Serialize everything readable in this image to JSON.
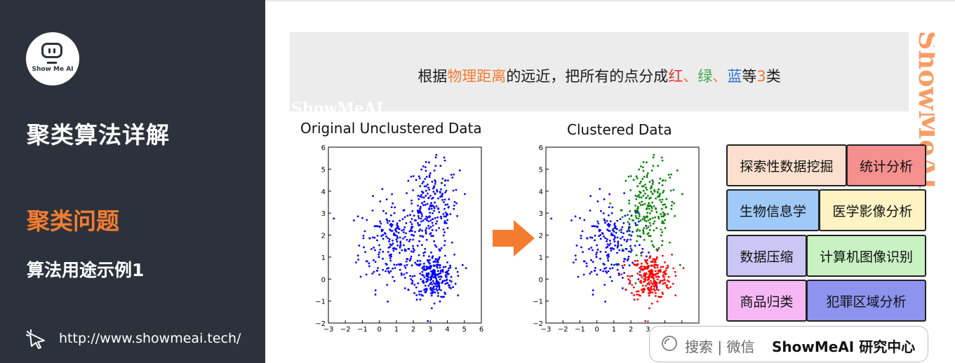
{
  "sidebar": {
    "logo_text": "Show Me AI",
    "title": "聚类算法详解",
    "section": "聚类问题",
    "subsection": "算法用途示例1",
    "link": "http://www.showmeai.tech/"
  },
  "caption": {
    "pre": "根据",
    "hl1": "物理距离",
    "mid": "的远近，把所有的点分成",
    "red": "红",
    "sep1": "、",
    "green": "绿",
    "sep2": "、",
    "blue": "蓝",
    "post1": "等",
    "num": "3",
    "post2": "类"
  },
  "watermark": "ShowMeAI",
  "charts": {
    "left_title": "Original Unclustered Data",
    "right_title": "Clustered Data"
  },
  "chart_data": [
    {
      "type": "scatter",
      "title": "Original Unclustered Data",
      "xlim": [
        -3,
        6
      ],
      "ylim": [
        -2,
        6
      ],
      "xticks": [
        "−3",
        "−2",
        "−1",
        "0",
        "1",
        "2",
        "3",
        "4",
        "5",
        "6"
      ],
      "yticks": [
        "6",
        "5",
        "4",
        "3",
        "2",
        "1",
        "0",
        "−1",
        "−2"
      ],
      "series": [
        {
          "color": "#0000ff",
          "clusters": [
            {
              "cx": 0.8,
              "cy": 1.6,
              "sx": 1.0,
              "sy": 1.0,
              "n": 230
            },
            {
              "cx": 3.1,
              "cy": 3.2,
              "sx": 0.8,
              "sy": 1.0,
              "n": 230
            },
            {
              "cx": 3.2,
              "cy": 0.1,
              "sx": 0.6,
              "sy": 0.5,
              "n": 260
            }
          ]
        }
      ]
    },
    {
      "type": "scatter",
      "title": "Clustered Data",
      "xlim": [
        -3,
        6
      ],
      "ylim": [
        -2,
        6
      ],
      "xticks": [
        "−3",
        "−2",
        "−1",
        "0",
        "1",
        "2",
        "3",
        "4",
        "5",
        "6"
      ],
      "yticks": [
        "6",
        "5",
        "4",
        "3",
        "2",
        "1",
        "0",
        "−1",
        "−2"
      ],
      "series": [
        {
          "color": "#0000ff",
          "clusters": [
            {
              "cx": 0.8,
              "cy": 1.6,
              "sx": 1.0,
              "sy": 1.0,
              "n": 230
            }
          ]
        },
        {
          "color": "#008000",
          "clusters": [
            {
              "cx": 3.1,
              "cy": 3.2,
              "sx": 0.8,
              "sy": 1.0,
              "n": 230
            }
          ]
        },
        {
          "color": "#ff0000",
          "clusters": [
            {
              "cx": 3.2,
              "cy": 0.1,
              "sx": 0.6,
              "sy": 0.5,
              "n": 260
            }
          ]
        }
      ]
    }
  ],
  "applications": [
    {
      "label": "探索性数据挖掘",
      "color": "#fbe0cf"
    },
    {
      "label": "统计分析",
      "color": "#f5908f"
    },
    {
      "label": "生物信息学",
      "color": "#9fc9f7"
    },
    {
      "label": "医学影像分析",
      "color": "#fff3c4"
    },
    {
      "label": "数据压缩",
      "color": "#cbc6f5"
    },
    {
      "label": "计算机图像识别",
      "color": "#c8f2c2"
    },
    {
      "label": "商品归类",
      "color": "#f5b8f5"
    },
    {
      "label": "犯罪区域分析",
      "color": "#8d93ef"
    }
  ],
  "search": {
    "label": "搜索 | 微信",
    "brand": "ShowMeAI 研究中心"
  }
}
